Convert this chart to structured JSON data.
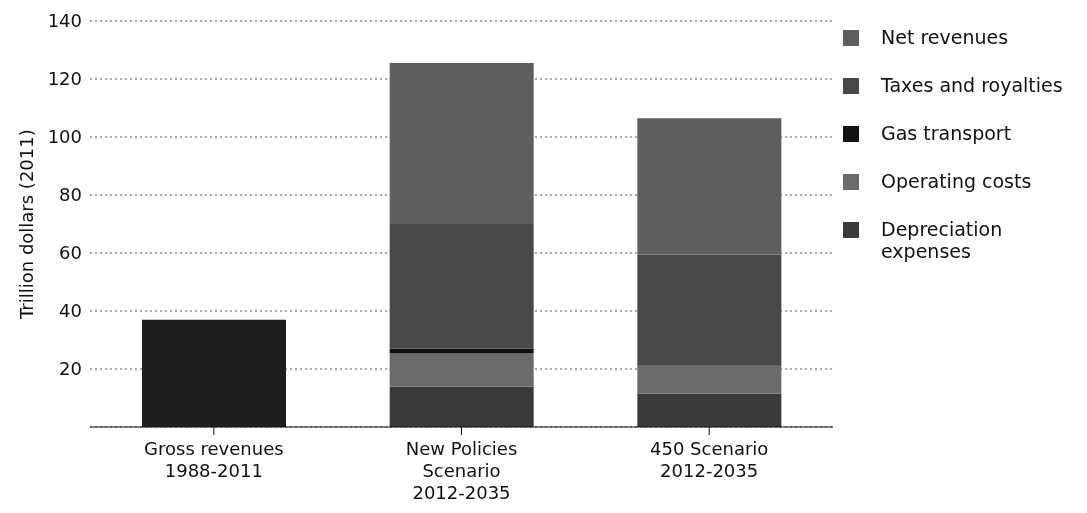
{
  "chart_data": {
    "type": "bar",
    "stacked": true,
    "ylabel": "Trillion dollars (2011)",
    "categories": [
      "Gross revenues 1988-2011",
      "New Policies Scenario 2012-2035",
      "450 Scenario 2012-2035"
    ],
    "series": [
      {
        "color": "#1e1e1e",
        "values": [
          37,
          null,
          null
        ]
      },
      {
        "name": "Depreciation expenses",
        "color": "#3a3a3a",
        "values": [
          null,
          14,
          11.5
        ]
      },
      {
        "name": "Operating costs",
        "color": "#6a6a6a",
        "values": [
          null,
          11.5,
          10
        ]
      },
      {
        "name": "Gas transport",
        "color": "#111111",
        "values": [
          null,
          1.5,
          0.5
        ]
      },
      {
        "name": "Taxes and royalties",
        "color": "#484848",
        "values": [
          null,
          43,
          37.5
        ]
      },
      {
        "name": "Net revenues",
        "color": "#5e5e5e",
        "values": [
          null,
          55.5,
          47
        ]
      }
    ],
    "ylim": [
      0,
      140
    ],
    "yticks": [
      20,
      40,
      60,
      80,
      100,
      120,
      140
    ],
    "grid": "y",
    "legend": "right"
  }
}
